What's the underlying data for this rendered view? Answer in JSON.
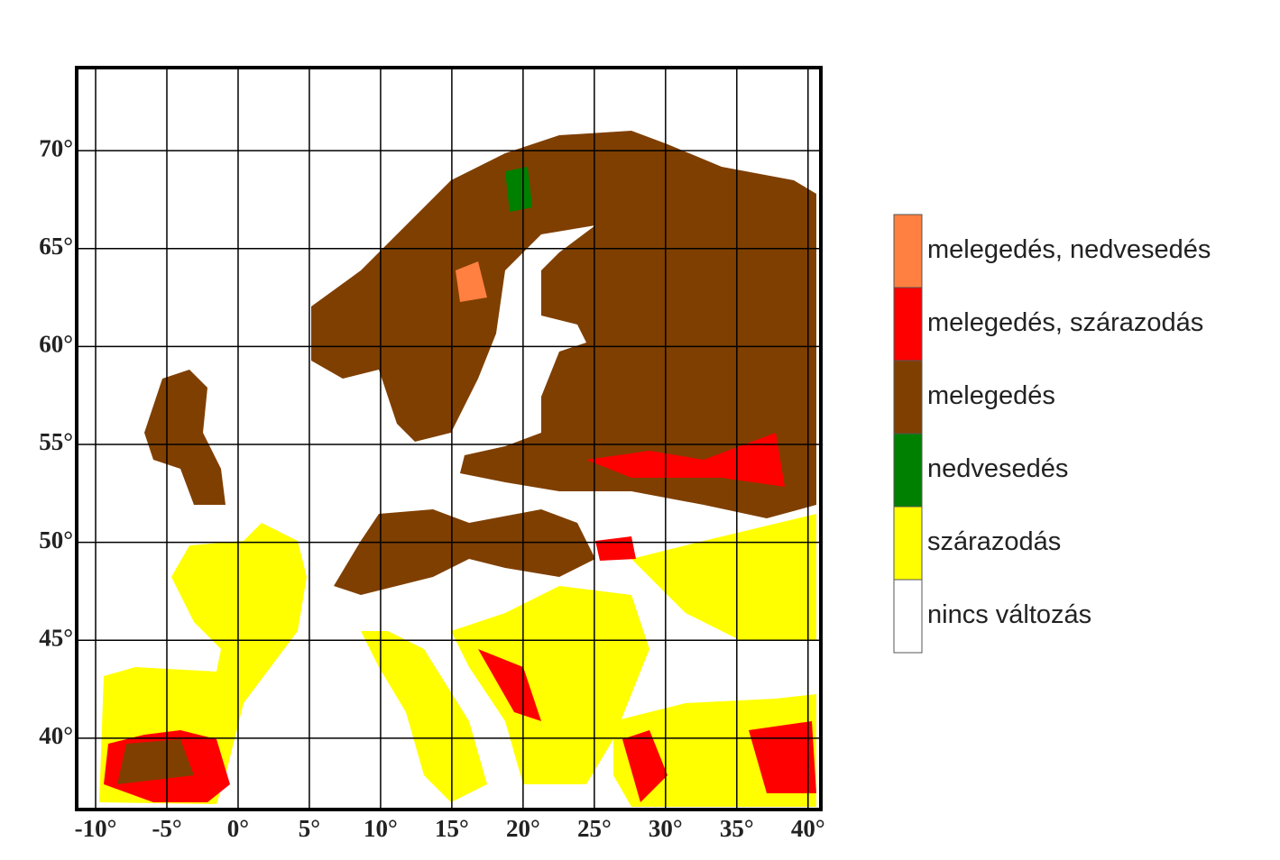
{
  "map": {
    "lonlim": [
      -11.33,
      40.9
    ],
    "latlim": [
      36.36,
      74.24
    ],
    "lon_ticks": [
      {
        "value": -10,
        "label": "-10°"
      },
      {
        "value": -5,
        "label": "-5°"
      },
      {
        "value": 0,
        "label": "0°"
      },
      {
        "value": 5,
        "label": "5°"
      },
      {
        "value": 10,
        "label": "10°"
      },
      {
        "value": 15,
        "label": "15°"
      },
      {
        "value": 20,
        "label": "20°"
      },
      {
        "value": 25,
        "label": "25°"
      },
      {
        "value": 30,
        "label": "30°"
      },
      {
        "value": 35,
        "label": "35°"
      },
      {
        "value": 40,
        "label": "40°"
      }
    ],
    "lat_ticks": [
      {
        "value": 40,
        "label": "40°"
      },
      {
        "value": 45,
        "label": "45°"
      },
      {
        "value": 50,
        "label": "50°"
      },
      {
        "value": 55,
        "label": "55°"
      },
      {
        "value": 60,
        "label": "60°"
      },
      {
        "value": 65,
        "label": "65°"
      },
      {
        "value": 70,
        "label": "70°"
      }
    ],
    "legend": [
      {
        "label": "melegedés, nedvesedés",
        "color": "#ff8040"
      },
      {
        "label": "melegedés, szárazodás",
        "color": "#ff0000"
      },
      {
        "label": "melegedés",
        "color": "#7f3f00"
      },
      {
        "label": "nedvesedés",
        "color": "#008000"
      },
      {
        "label": "szárazodás",
        "color": "#ffff00"
      },
      {
        "label": "nincs változás",
        "color": "#ffffff"
      }
    ]
  }
}
